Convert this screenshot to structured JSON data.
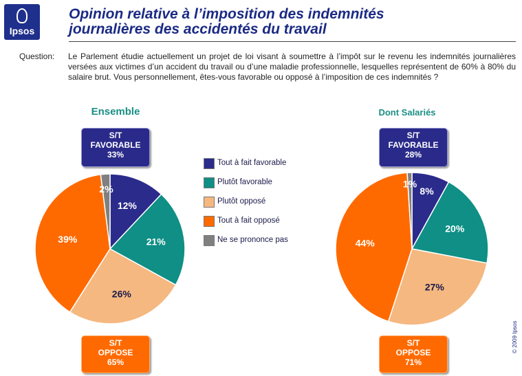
{
  "header": {
    "logo_text": "Ipsos",
    "title_line1": "Opinion relative à l’imposition des indemnités",
    "title_line2": "journalières des accidentés du travail"
  },
  "question": {
    "label": "Question:",
    "text": "Le Parlement étudie actuellement un projet de loi visant à soumettre à l’impôt sur le revenu les indemnités journalières versées aux victimes d’un accident du travail ou d’une maladie professionnelle, lesquelles représentent de 60% à 80% du salaire brut. Vous personnellement, êtes-vous favorable ou opposé à l’imposition de ces indemnités ?"
  },
  "colors": {
    "tout_favorable": "#2b2b8c",
    "plutot_favorable": "#0f8f85",
    "plutot_oppose": "#f5b880",
    "tout_oppose": "#ff6a00",
    "ne_se_prononce": "#808080"
  },
  "legend": [
    {
      "label": "Tout à fait favorable",
      "color": "#2b2b8c"
    },
    {
      "label": "Plutôt favorable",
      "color": "#0f8f85"
    },
    {
      "label": "Plutôt opposé",
      "color": "#f5b880"
    },
    {
      "label": "Tout à fait opposé",
      "color": "#ff6a00"
    },
    {
      "label": "Ne se prononce pas",
      "color": "#808080"
    }
  ],
  "chart_data": [
    {
      "type": "pie",
      "title": "Ensemble",
      "categories": [
        "Tout à fait favorable",
        "Plutôt favorable",
        "Plutôt opposé",
        "Tout à fait opposé",
        "Ne se prononce pas"
      ],
      "values": [
        12,
        21,
        26,
        39,
        2
      ],
      "labels": [
        "12%",
        "21%",
        "26%",
        "39%",
        "2%"
      ],
      "favorable_box": {
        "line1": "S/T",
        "line2": "FAVORABLE",
        "value": "33%"
      },
      "oppose_box": {
        "line1": "S/T",
        "line2": "OPPOSE",
        "value": "65%"
      }
    },
    {
      "type": "pie",
      "title": "Dont Salariés",
      "categories": [
        "Tout à fait favorable",
        "Plutôt favorable",
        "Plutôt opposé",
        "Tout à fait opposé",
        "Ne se prononce pas"
      ],
      "values": [
        8,
        20,
        27,
        44,
        1
      ],
      "labels": [
        "8%",
        "20%",
        "27%",
        "44%",
        "1%"
      ],
      "favorable_box": {
        "line1": "S/T",
        "line2": "FAVORABLE",
        "value": "28%"
      },
      "oppose_box": {
        "line1": "S/T",
        "line2": "OPPOSE",
        "value": "71%"
      }
    }
  ],
  "copyright": "© 2009 Ipsos"
}
